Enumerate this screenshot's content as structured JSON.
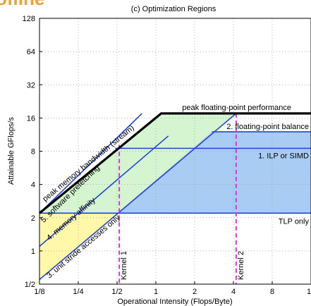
{
  "chart_data": {
    "type": "line",
    "title": "(c) Optimization Regions",
    "xlabel": "Operational Intensity (Flops/Byte)",
    "ylabel": "Attainable GFlops/s",
    "x_scale": "log2",
    "y_scale": "log2",
    "xlim": [
      0.125,
      16
    ],
    "ylim": [
      0.5,
      128
    ],
    "x_ticks": [
      0.125,
      0.25,
      0.5,
      1,
      2,
      4,
      8,
      16
    ],
    "x_tick_labels": [
      "1/8",
      "1/4",
      "1/2",
      "1",
      "2",
      "4",
      "8",
      "16"
    ],
    "y_ticks": [
      0.5,
      1,
      2,
      4,
      8,
      16,
      32,
      64,
      128
    ],
    "y_tick_labels": [
      "1/2",
      "1",
      "2",
      "4",
      "8",
      "16",
      "32",
      "64",
      "128"
    ],
    "grid": true,
    "logo_text": "ofline",
    "colors": {
      "roof": "#000000",
      "ceiling": "#2244dd",
      "kernel": "#dd33dd",
      "region_yellow": "#fff8a8",
      "region_green": "#d4f5d0",
      "region_blue": "#a8ccf4"
    },
    "roofline": {
      "name": "peak memory bandwidth (stream)",
      "points": [
        [
          0.125,
          2.2
        ],
        [
          1.1,
          17.6
        ],
        [
          16,
          17.6
        ]
      ]
    },
    "peak_label": "peak floating-point performance",
    "ceilings": [
      {
        "name": "2. floating-point balance",
        "kind": "horizontal",
        "y": 12
      },
      {
        "name": "1. ILP or SIMD",
        "kind": "horizontal",
        "y": 8.5
      },
      {
        "name": "TLP only",
        "kind": "horizontal",
        "y": 2.2
      },
      {
        "name": "5. software prefetching",
        "kind": "bandwidth",
        "points": [
          [
            0.125,
            2.2
          ],
          [
            0.78,
            17.6
          ]
        ]
      },
      {
        "name": "4. memory affinity",
        "kind": "bandwidth",
        "points": [
          [
            0.125,
            1.1
          ],
          [
            1.25,
            11
          ]
        ]
      },
      {
        "name": "3. unit stride accesses only",
        "kind": "bandwidth",
        "points": [
          [
            0.125,
            0.55
          ],
          [
            4.2,
            17.6
          ]
        ]
      }
    ],
    "kernels": [
      {
        "name": "Kernel 1",
        "x": 0.52
      },
      {
        "name": "Kernel 2",
        "x": 4.2
      }
    ]
  }
}
